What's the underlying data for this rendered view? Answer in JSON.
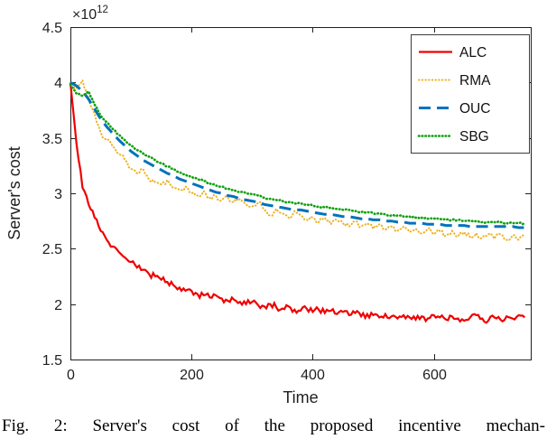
{
  "figure": {
    "caption": "Fig. 2: Server's cost of the proposed incentive mechan-"
  },
  "chart_data": {
    "type": "line",
    "title": "",
    "xlabel": "Time",
    "ylabel": "Server's cost",
    "y_multiplier_base": "×10",
    "y_multiplier_exp": "12",
    "xlim": [
      0,
      760
    ],
    "ylim": [
      1.5,
      4.5
    ],
    "xticks": [
      0,
      200,
      400,
      600
    ],
    "yticks": [
      1.5,
      2,
      2.5,
      3,
      3.5,
      4,
      4.5
    ],
    "grid": false,
    "legend_position": "top-right",
    "axes_color": "#1f1f1f",
    "x": [
      0,
      10,
      20,
      30,
      40,
      50,
      60,
      70,
      80,
      90,
      100,
      110,
      120,
      130,
      140,
      150,
      160,
      170,
      180,
      190,
      200,
      210,
      220,
      230,
      240,
      250,
      260,
      270,
      280,
      290,
      300,
      310,
      320,
      330,
      340,
      350,
      360,
      370,
      380,
      390,
      400,
      410,
      420,
      430,
      440,
      450,
      460,
      470,
      480,
      490,
      500,
      510,
      520,
      530,
      540,
      550,
      560,
      570,
      580,
      590,
      600,
      610,
      620,
      630,
      640,
      650,
      660,
      670,
      680,
      690,
      700,
      710,
      720,
      730,
      740,
      750
    ],
    "series": [
      {
        "name": "ALC",
        "color": "#ee0000",
        "style": "solid",
        "width": 2.2,
        "noise": 0.03,
        "values": [
          4.0,
          3.45,
          3.05,
          2.9,
          2.78,
          2.66,
          2.58,
          2.52,
          2.47,
          2.42,
          2.38,
          2.33,
          2.31,
          2.27,
          2.25,
          2.22,
          2.2,
          2.17,
          2.15,
          2.12,
          2.12,
          2.09,
          2.08,
          2.06,
          2.08,
          2.05,
          2.03,
          2.04,
          2.02,
          2.0,
          2.02,
          1.99,
          1.98,
          2.0,
          1.97,
          1.96,
          1.98,
          1.95,
          1.94,
          1.96,
          1.93,
          1.95,
          1.92,
          1.94,
          1.91,
          1.93,
          1.9,
          1.92,
          1.89,
          1.91,
          1.9,
          1.88,
          1.91,
          1.89,
          1.87,
          1.9,
          1.88,
          1.86,
          1.89,
          1.87,
          1.9,
          1.88,
          1.86,
          1.89,
          1.87,
          1.85,
          1.88,
          1.9,
          1.87,
          1.85,
          1.88,
          1.86,
          1.89,
          1.87,
          1.9,
          1.88
        ]
      },
      {
        "name": "RMA",
        "color": "#edb120",
        "style": "dotted",
        "width": 2.0,
        "noise": 0.025,
        "values": [
          4.0,
          3.95,
          4.02,
          3.85,
          3.72,
          3.55,
          3.48,
          3.42,
          3.36,
          3.3,
          3.22,
          3.18,
          3.22,
          3.12,
          3.1,
          3.08,
          3.12,
          3.05,
          3.03,
          3.06,
          3.0,
          2.98,
          3.02,
          2.96,
          2.98,
          2.94,
          2.96,
          2.92,
          2.95,
          2.9,
          2.88,
          2.92,
          2.85,
          2.8,
          2.86,
          2.82,
          2.78,
          2.84,
          2.8,
          2.76,
          2.78,
          2.74,
          2.78,
          2.72,
          2.76,
          2.73,
          2.7,
          2.74,
          2.7,
          2.73,
          2.68,
          2.72,
          2.67,
          2.7,
          2.66,
          2.7,
          2.65,
          2.68,
          2.64,
          2.68,
          2.63,
          2.66,
          2.62,
          2.66,
          2.61,
          2.65,
          2.6,
          2.64,
          2.6,
          2.63,
          2.59,
          2.63,
          2.58,
          2.62,
          2.58,
          2.62
        ]
      },
      {
        "name": "OUC",
        "color": "#0072bd",
        "style": "dashed",
        "width": 3.0,
        "noise": 0,
        "values": [
          4.0,
          3.97,
          3.92,
          3.85,
          3.76,
          3.67,
          3.6,
          3.54,
          3.48,
          3.43,
          3.38,
          3.34,
          3.3,
          3.27,
          3.24,
          3.21,
          3.18,
          3.16,
          3.13,
          3.11,
          3.09,
          3.07,
          3.05,
          3.03,
          3.01,
          3.0,
          2.98,
          2.97,
          2.95,
          2.94,
          2.93,
          2.92,
          2.9,
          2.89,
          2.88,
          2.87,
          2.86,
          2.85,
          2.85,
          2.84,
          2.83,
          2.82,
          2.81,
          2.81,
          2.8,
          2.79,
          2.79,
          2.78,
          2.77,
          2.77,
          2.76,
          2.76,
          2.75,
          2.75,
          2.74,
          2.74,
          2.73,
          2.73,
          2.73,
          2.72,
          2.72,
          2.72,
          2.71,
          2.71,
          2.71,
          2.71,
          2.7,
          2.7,
          2.7,
          2.7,
          2.7,
          2.7,
          2.7,
          2.7,
          2.69,
          2.69
        ]
      },
      {
        "name": "SBG",
        "color": "#0ca10c",
        "style": "dotted",
        "width": 2.6,
        "noise": 0.008,
        "values": [
          3.98,
          3.9,
          3.88,
          3.92,
          3.8,
          3.7,
          3.64,
          3.58,
          3.53,
          3.48,
          3.43,
          3.39,
          3.36,
          3.33,
          3.3,
          3.27,
          3.24,
          3.22,
          3.19,
          3.17,
          3.15,
          3.13,
          3.11,
          3.09,
          3.07,
          3.06,
          3.04,
          3.03,
          3.01,
          3.0,
          2.99,
          2.98,
          2.96,
          2.95,
          2.94,
          2.93,
          2.92,
          2.91,
          2.91,
          2.9,
          2.89,
          2.88,
          2.87,
          2.87,
          2.86,
          2.85,
          2.85,
          2.84,
          2.83,
          2.83,
          2.82,
          2.82,
          2.81,
          2.8,
          2.8,
          2.79,
          2.79,
          2.78,
          2.78,
          2.77,
          2.77,
          2.77,
          2.76,
          2.76,
          2.76,
          2.75,
          2.75,
          2.75,
          2.74,
          2.74,
          2.74,
          2.74,
          2.73,
          2.73,
          2.73,
          2.73
        ]
      }
    ]
  }
}
